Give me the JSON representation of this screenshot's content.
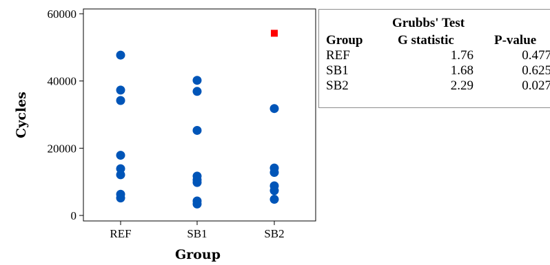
{
  "chart_data": {
    "type": "scatter",
    "title": "",
    "xlabel": "Group",
    "ylabel": "Cycles",
    "categories": [
      "REF",
      "SB1",
      "SB2"
    ],
    "ylim": [
      0,
      60000
    ],
    "yticks": [
      "0",
      "20000",
      "40000",
      "60000"
    ],
    "grid": false,
    "colors": {
      "points": "#0055b8",
      "outlier": "#ff0000"
    },
    "series": [
      {
        "category": "REF",
        "values": [
          47700,
          37300,
          34200,
          17900,
          13900,
          12100,
          6300,
          5200
        ]
      },
      {
        "category": "SB1",
        "values": [
          40200,
          36900,
          25300,
          11700,
          10600,
          9800,
          4300,
          3400
        ]
      },
      {
        "category": "SB2",
        "values": [
          31800,
          14100,
          12800,
          8800,
          7400,
          4800
        ]
      }
    ],
    "outliers": [
      {
        "category": "SB2",
        "value": 54200,
        "marker": "square"
      }
    ]
  },
  "table": {
    "title": "Grubbs' Test",
    "headers": [
      "Group",
      "G statistic",
      "P-value"
    ],
    "rows": [
      [
        "REF",
        "1.76",
        "0.477"
      ],
      [
        "SB1",
        "1.68",
        "0.625"
      ],
      [
        "SB2",
        "2.29",
        "0.027"
      ]
    ]
  }
}
